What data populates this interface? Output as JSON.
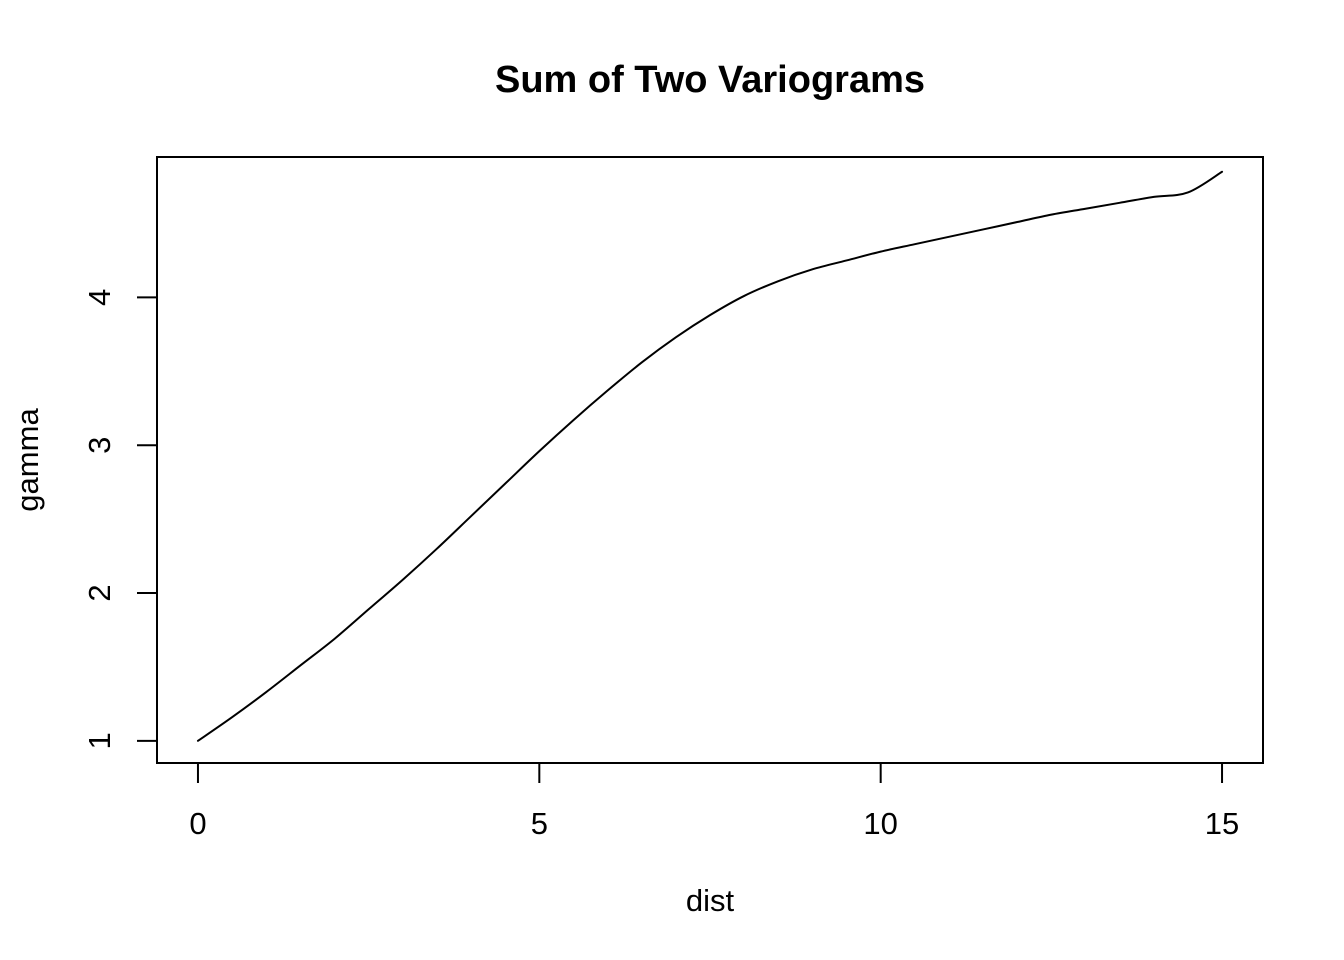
{
  "chart_data": {
    "type": "line",
    "title": "Sum of Two Variograms",
    "xlabel": "dist",
    "ylabel": "gamma",
    "xlim": [
      -0.6,
      15.6
    ],
    "ylim": [
      0.85,
      4.95
    ],
    "x_ticks": [
      0,
      5,
      10,
      15
    ],
    "x_tick_labels": [
      "0",
      "5",
      "10",
      "15"
    ],
    "y_ticks": [
      1,
      2,
      3,
      4
    ],
    "y_tick_labels": [
      "1",
      "2",
      "3",
      "4"
    ],
    "grid": false,
    "legend": "none",
    "line_color": "#000000",
    "series": [
      {
        "x": [
          0,
          0.5,
          1,
          1.5,
          2,
          2.5,
          3,
          3.5,
          4,
          4.5,
          5,
          5.5,
          6,
          6.5,
          7,
          7.5,
          8,
          8.5,
          9,
          9.5,
          10,
          10.5,
          11,
          11.5,
          12,
          12.5,
          13,
          13.5,
          14,
          14.5,
          15
        ],
        "values": [
          1.0,
          1.16,
          1.33,
          1.51,
          1.69,
          1.89,
          2.09,
          2.3,
          2.52,
          2.74,
          2.96,
          3.17,
          3.37,
          3.56,
          3.73,
          3.88,
          4.01,
          4.11,
          4.19,
          4.25,
          4.31,
          4.36,
          4.41,
          4.46,
          4.51,
          4.56,
          4.6,
          4.64,
          4.68,
          4.71,
          4.85
        ]
      }
    ]
  }
}
